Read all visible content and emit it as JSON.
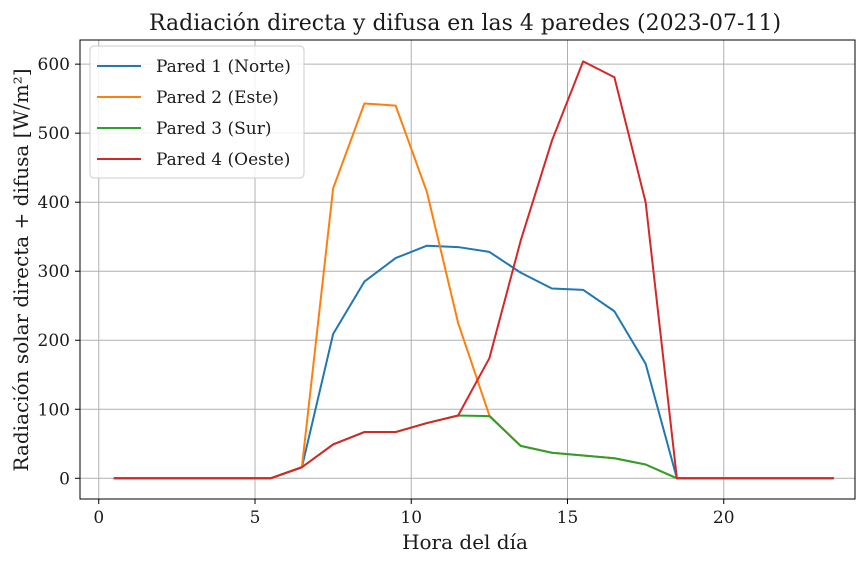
{
  "chart_data": {
    "type": "line",
    "title": "Radiación directa y difusa en las 4 paredes (2023-07-11)",
    "xlabel": "Hora del día",
    "ylabel": "Radiación solar directa + difusa [W/m²]",
    "xlim": [
      -0.6,
      24.2
    ],
    "ylim": [
      -30,
      635
    ],
    "xticks": [
      0,
      5,
      10,
      15,
      20
    ],
    "yticks": [
      0,
      100,
      200,
      300,
      400,
      500,
      600
    ],
    "grid": true,
    "legend_position": "top-left",
    "x": [
      0.5,
      1.5,
      2.5,
      3.5,
      4.5,
      5.5,
      6.5,
      7.5,
      8.5,
      9.5,
      10.5,
      11.5,
      12.5,
      13.5,
      14.5,
      15.5,
      16.5,
      17.5,
      18.5,
      19.5,
      20.5,
      21.5,
      22.5,
      23.5
    ],
    "series": [
      {
        "name": "Pared 1 (Norte)",
        "color": "#1f77b4",
        "values": [
          0,
          0,
          0,
          0,
          0,
          0,
          16,
          209,
          285,
          319,
          337,
          335,
          328,
          298,
          275,
          273,
          242,
          166,
          0,
          0,
          0,
          0,
          0,
          0
        ]
      },
      {
        "name": "Pared 2 (Este)",
        "color": "#ff7f0e",
        "values": [
          0,
          0,
          0,
          0,
          0,
          0,
          16,
          420,
          543,
          540,
          415,
          225,
          91,
          47,
          37,
          33,
          29,
          20,
          0,
          0,
          0,
          0,
          0,
          0
        ]
      },
      {
        "name": "Pared 3 (Sur)",
        "color": "#2ca02c",
        "values": [
          0,
          0,
          0,
          0,
          0,
          0,
          16,
          49,
          67,
          67,
          80,
          91,
          90,
          47,
          37,
          33,
          29,
          20,
          0,
          0,
          0,
          0,
          0,
          0
        ]
      },
      {
        "name": "Pared 4 (Oeste)",
        "color": "#d62728",
        "values": [
          0,
          0,
          0,
          0,
          0,
          0,
          16,
          49,
          67,
          67,
          80,
          91,
          174,
          344,
          489,
          604,
          581,
          400,
          0,
          0,
          0,
          0,
          0,
          0
        ]
      }
    ]
  }
}
